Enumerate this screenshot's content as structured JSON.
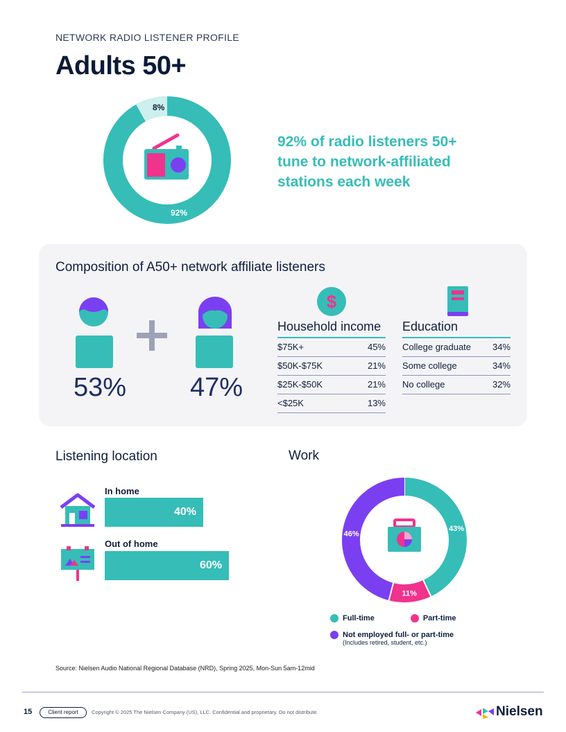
{
  "header": {
    "eyebrow": "NETWORK RADIO LISTENER PROFILE",
    "title": "Adults 50+"
  },
  "hero": {
    "headline": "92% of radio listeners 50+ tune to network-affiliated stations each week",
    "donut": {
      "segments": [
        {
          "label": "92%",
          "value": 92,
          "color": "#36bdb8"
        },
        {
          "label": "8%",
          "value": 8,
          "color": "#cdefed"
        }
      ],
      "icon": "radio-icon"
    }
  },
  "composition": {
    "title": "Composition of A50+ network affiliate listeners",
    "gender": [
      {
        "icon": "male-person-icon",
        "pct": "53%"
      },
      {
        "icon": "female-person-icon",
        "pct": "47%"
      }
    ],
    "income": {
      "icon": "dollar-coin-icon",
      "title": "Household income",
      "rows": [
        {
          "label": "$75K+",
          "value": "45%"
        },
        {
          "label": "$50K-$75K",
          "value": "21%"
        },
        {
          "label": "$25K-$50K",
          "value": "21%"
        },
        {
          "label": "<$25K",
          "value": "13%"
        }
      ]
    },
    "education": {
      "icon": "book-icon",
      "title": "Education",
      "rows": [
        {
          "label": "College graduate",
          "value": "34%"
        },
        {
          "label": "Some college",
          "value": "34%"
        },
        {
          "label": "No college",
          "value": "32%"
        }
      ]
    }
  },
  "location": {
    "title": "Listening location",
    "items": [
      {
        "label": "In home",
        "value": "40%",
        "fraction": 0.4,
        "icon": "house-icon"
      },
      {
        "label": "Out of home",
        "value": "60%",
        "fraction": 0.6,
        "icon": "billboard-icon"
      }
    ]
  },
  "work": {
    "title": "Work",
    "icon": "briefcase-icon",
    "legend": [
      {
        "label": "Full-time",
        "color": "#36bdb8"
      },
      {
        "label": "Part-time",
        "color": "#f0338d"
      },
      {
        "label": "Not employed full- or part-time",
        "note": "(Includes retired, student, etc.)",
        "color": "#7b3ff2"
      }
    ]
  },
  "chart_data": {
    "type": "pie",
    "categories": [
      "Full-time",
      "Part-time",
      "Not employed full- or part-time"
    ],
    "values": [
      43,
      11,
      46
    ],
    "labels": [
      "43%",
      "11%",
      "46%"
    ],
    "colors": [
      "#36bdb8",
      "#f0338d",
      "#7b3ff2"
    ],
    "title": "Work"
  },
  "footer": {
    "source": "Source: Nielsen Audio National Regional Database (NRD), Spring 2025, Mon-Sun 5am-12mid",
    "page": "15",
    "badge": "Client report",
    "copyright": "Copyright © 2025 The Nielsen Company (US), LLC. Confidential and proprietary. Do not distribute.",
    "brand": "Nielsen"
  }
}
